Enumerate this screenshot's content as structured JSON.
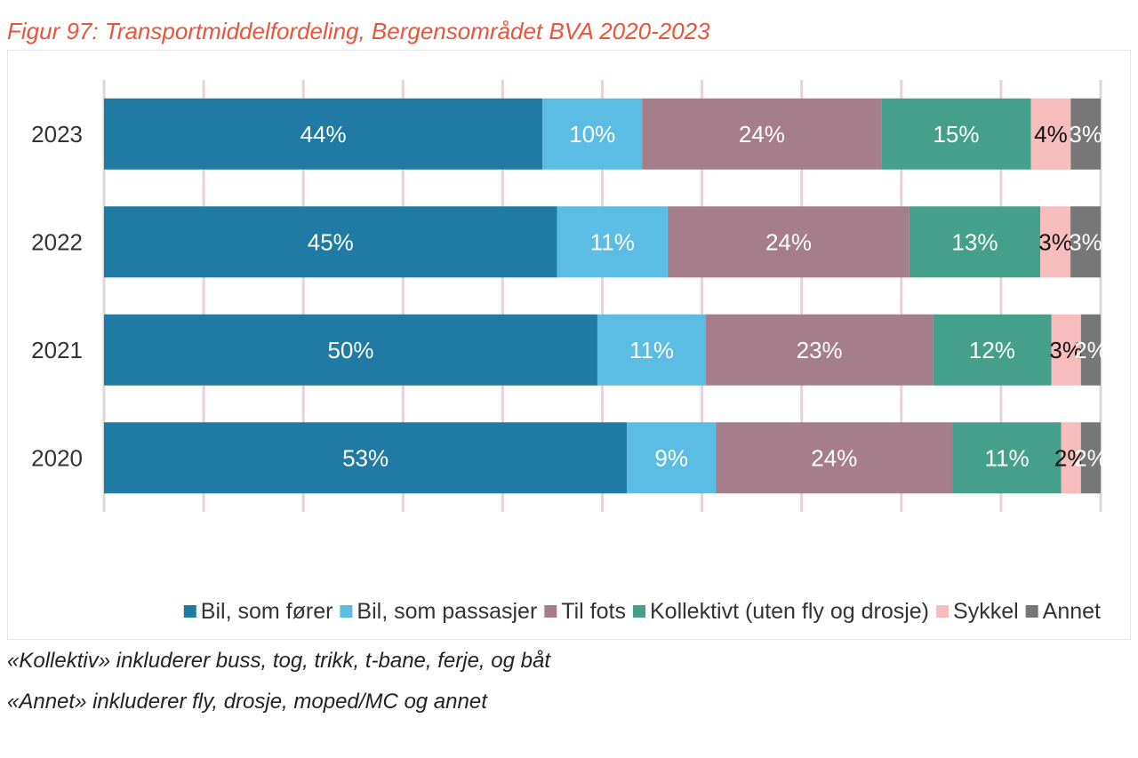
{
  "figure": {
    "title": "Figur 97: Transportmiddelfordeling, Bergensområdet BVA 2020-2023"
  },
  "notes": [
    "«Kollektiv» inkluderer buss, tog, trikk, t-bane, ferje, og båt",
    "«Annet» inkluderer fly, drosje, moped/MC og annet"
  ],
  "colors": {
    "title": "#e8553a",
    "gridline": "#e3d4d9",
    "axis": "#d9d9d9"
  },
  "chart_data": {
    "type": "bar",
    "orientation": "horizontal",
    "stacked": true,
    "normalized": true,
    "categories": [
      "2023",
      "2022",
      "2021",
      "2020"
    ],
    "series": [
      {
        "name": "Bil, som fører",
        "color": "#1f7ba3",
        "values": [
          44,
          45,
          50,
          53
        ],
        "labels": [
          "44%",
          "45%",
          "50%",
          "53%"
        ],
        "label_color": "#ffffff"
      },
      {
        "name": "Bil, som passasjer",
        "color": "#5bbde3",
        "values": [
          10,
          11,
          11,
          9
        ],
        "labels": [
          "10%",
          "11%",
          "11%",
          "9%"
        ],
        "label_color": "#ffffff"
      },
      {
        "name": "Til fots",
        "color": "#a67d8a",
        "values": [
          24,
          24,
          23,
          24
        ],
        "labels": [
          "24%",
          "24%",
          "23%",
          "24%"
        ],
        "label_color": "#ffffff"
      },
      {
        "name": "Kollektivt (uten fly og drosje)",
        "color": "#45a08b",
        "values": [
          15,
          13,
          12,
          11
        ],
        "labels": [
          "15%",
          "13%",
          "12%",
          "11%"
        ],
        "label_color": "#ffffff"
      },
      {
        "name": "Sykkel",
        "color": "#f7bcbc",
        "values": [
          4,
          3,
          3,
          2
        ],
        "labels": [
          "4%",
          "3%",
          "3%",
          "2%"
        ],
        "label_color": "#111111"
      },
      {
        "name": "Annet",
        "color": "#777777",
        "values": [
          3,
          3,
          2,
          2
        ],
        "labels": [
          "3%",
          "3%",
          "2%",
          "2%"
        ],
        "label_color": "#ffffff"
      }
    ],
    "xlim": [
      0,
      100
    ],
    "grid": true,
    "legend": "bottom"
  }
}
